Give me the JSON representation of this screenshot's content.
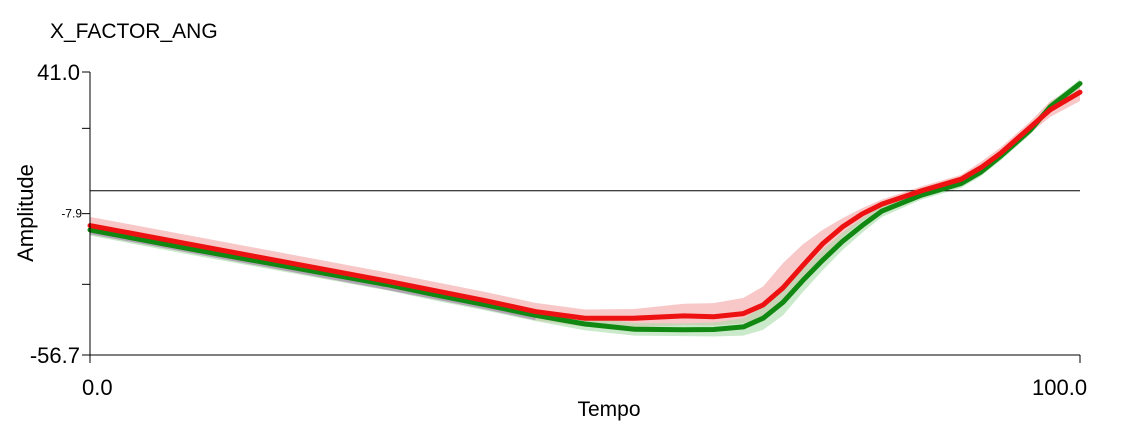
{
  "chart_data": {
    "type": "line",
    "title": "X_FACTOR_ANG",
    "xlabel": "Tempo",
    "ylabel": "Amplitude",
    "xlim": [
      0.0,
      100.0
    ],
    "ylim": [
      -56.7,
      41.0
    ],
    "x_tick_labels": [
      "0.0",
      "100.0"
    ],
    "y_tick_labels": [
      "41.0",
      "-7.9",
      "-56.7"
    ],
    "y_tick_values": [
      41.0,
      -7.9,
      -56.7
    ],
    "reference_line_y": 0,
    "grid": false,
    "legend": "none",
    "colors": {
      "red_line": "#ee1111",
      "red_band": "#f4a3a3",
      "green_line": "#118811",
      "green_band": "#a9dca9",
      "purple_band": "#a88ab6",
      "axis": "#000000"
    },
    "series": [
      {
        "color": "#ee1111",
        "band_color": "#f4a3a3",
        "x": [
          0,
          10,
          20,
          30,
          35,
          40,
          45,
          50,
          55,
          60,
          63,
          66,
          68,
          70,
          72,
          74,
          76,
          78,
          80,
          84,
          88,
          90,
          92,
          95,
          97,
          100
        ],
        "y": [
          -12.0,
          -18.4,
          -24.8,
          -31.2,
          -34.6,
          -38.0,
          -41.7,
          -44.0,
          -44.0,
          -43.2,
          -43.5,
          -42.4,
          -39.4,
          -33.5,
          -25.8,
          -18.3,
          -12.5,
          -8.0,
          -4.6,
          0.0,
          4.0,
          8.0,
          13.0,
          22.0,
          28.0,
          34.0
        ],
        "upper": [
          -9.0,
          -15.4,
          -21.8,
          -28.2,
          -31.6,
          -35.0,
          -38.7,
          -41.0,
          -40.8,
          -39.0,
          -38.8,
          -37.0,
          -33.0,
          -25.0,
          -18.5,
          -13.5,
          -9.5,
          -6.0,
          -3.0,
          1.5,
          5.5,
          10.0,
          15.0,
          24.0,
          31.0,
          37.0
        ],
        "lower": [
          -15.0,
          -21.4,
          -27.8,
          -34.2,
          -37.6,
          -41.0,
          -44.7,
          -47.0,
          -47.2,
          -46.4,
          -46.5,
          -45.8,
          -43.8,
          -38.5,
          -31.0,
          -23.5,
          -16.0,
          -10.5,
          -6.6,
          -1.5,
          2.5,
          6.0,
          11.0,
          20.0,
          25.5,
          31.0
        ]
      },
      {
        "color": "#118811",
        "band_color": "#a9dca9",
        "x": [
          0,
          10,
          20,
          30,
          35,
          40,
          45,
          50,
          55,
          60,
          63,
          66,
          68,
          70,
          72,
          74,
          76,
          78,
          80,
          84,
          88,
          90,
          92,
          95,
          97,
          100
        ],
        "y": [
          -13.5,
          -20.0,
          -26.2,
          -32.4,
          -36.0,
          -39.4,
          -43.0,
          -46.0,
          -47.8,
          -48.0,
          -47.9,
          -47.0,
          -44.0,
          -38.5,
          -31.0,
          -24.0,
          -17.5,
          -12.0,
          -7.0,
          -1.5,
          2.5,
          6.5,
          12.0,
          21.0,
          29.0,
          37.0
        ],
        "upper": [
          -11.5,
          -18.0,
          -24.2,
          -30.4,
          -34.0,
          -37.4,
          -41.0,
          -43.8,
          -45.6,
          -45.8,
          -45.5,
          -44.0,
          -40.0,
          -34.0,
          -27.0,
          -20.5,
          -14.5,
          -9.5,
          -5.0,
          0.0,
          4.0,
          8.0,
          13.5,
          22.5,
          30.5,
          38.5
        ],
        "lower": [
          -15.5,
          -22.0,
          -28.2,
          -34.4,
          -38.0,
          -41.4,
          -45.0,
          -48.2,
          -50.0,
          -50.2,
          -50.3,
          -50.0,
          -48.0,
          -43.0,
          -35.0,
          -27.5,
          -20.5,
          -14.5,
          -9.0,
          -3.0,
          1.0,
          5.0,
          10.5,
          19.5,
          27.5,
          35.5
        ]
      }
    ]
  }
}
